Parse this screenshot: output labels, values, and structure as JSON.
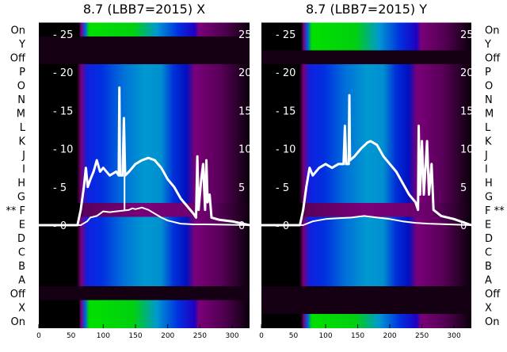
{
  "chart_data": [
    {
      "type": "heatmap",
      "title": "8.7 (LBB7=2015) X",
      "row_labels": [
        "On",
        "Y",
        "Off",
        "P",
        "O",
        "N",
        "M",
        "L",
        "K",
        "J",
        "I",
        "H",
        "G",
        "** F",
        "E",
        "D",
        "C",
        "B",
        "A",
        "Off",
        "X",
        "On"
      ],
      "row_kinds": [
        "on",
        "off",
        "off",
        "c",
        "c",
        "c",
        "c",
        "c",
        "c",
        "c",
        "c",
        "c",
        "c",
        "dim",
        "c",
        "c",
        "c",
        "c",
        "c",
        "off",
        "on",
        "on"
      ],
      "xlim": [
        0,
        327
      ],
      "x_ticks": [
        0,
        50,
        100,
        150,
        200,
        250,
        300
      ],
      "inner_ylim": [
        0,
        25
      ],
      "inner_y_ticks": [
        0,
        5,
        10,
        15,
        20,
        25
      ],
      "series": [
        {
          "name": "upper",
          "points": [
            [
              0,
              0
            ],
            [
              60,
              0
            ],
            [
              65,
              2
            ],
            [
              70,
              5
            ],
            [
              73,
              7.5
            ],
            [
              76,
              5
            ],
            [
              80,
              6
            ],
            [
              85,
              7
            ],
            [
              90,
              8.5
            ],
            [
              95,
              7
            ],
            [
              100,
              7.5
            ],
            [
              110,
              6.5
            ],
            [
              120,
              7
            ],
            [
              124,
              6.5
            ],
            [
              125,
              18
            ],
            [
              126,
              6.5
            ],
            [
              130,
              6.5
            ],
            [
              132,
              14
            ],
            [
              134,
              6.5
            ],
            [
              140,
              7
            ],
            [
              150,
              8
            ],
            [
              160,
              8.5
            ],
            [
              170,
              8.8
            ],
            [
              180,
              8.5
            ],
            [
              190,
              7.5
            ],
            [
              200,
              6
            ],
            [
              210,
              5
            ],
            [
              220,
              3.5
            ],
            [
              230,
              2.5
            ],
            [
              240,
              1.5
            ],
            [
              244,
              1
            ],
            [
              246,
              9
            ],
            [
              248,
              2
            ],
            [
              252,
              6
            ],
            [
              255,
              8
            ],
            [
              258,
              2
            ],
            [
              260,
              8.5
            ],
            [
              262,
              3
            ],
            [
              265,
              4
            ],
            [
              268,
              1
            ],
            [
              280,
              0.7
            ],
            [
              300,
              0.5
            ],
            [
              327,
              0
            ]
          ]
        },
        {
          "name": "lower",
          "points": [
            [
              0,
              0
            ],
            [
              65,
              0
            ],
            [
              75,
              0.5
            ],
            [
              80,
              1
            ],
            [
              90,
              1.2
            ],
            [
              100,
              1.8
            ],
            [
              110,
              1.7
            ],
            [
              120,
              1.8
            ],
            [
              130,
              1.9
            ],
            [
              140,
              2
            ],
            [
              145,
              2.2
            ],
            [
              150,
              2.1
            ],
            [
              160,
              2.3
            ],
            [
              170,
              2
            ],
            [
              180,
              1.5
            ],
            [
              190,
              1
            ],
            [
              200,
              0.6
            ],
            [
              220,
              0.2
            ],
            [
              240,
              0.1
            ],
            [
              260,
              0.1
            ],
            [
              327,
              0
            ]
          ]
        },
        {
          "name": "spike",
          "points": [
            [
              133,
              1.9
            ],
            [
              133,
              6.5
            ]
          ]
        }
      ]
    },
    {
      "type": "heatmap",
      "title": "8.7 (LBB7=2015) Y",
      "row_labels": [
        "On",
        "Y",
        "Off",
        "P",
        "O",
        "N",
        "M",
        "L",
        "K",
        "J",
        "I",
        "H",
        "G",
        "F **",
        "E",
        "D",
        "C",
        "B",
        "A",
        "Off",
        "X",
        "On"
      ],
      "row_kinds": [
        "on",
        "on",
        "off",
        "c",
        "c",
        "c",
        "c",
        "c",
        "c",
        "c",
        "c",
        "c",
        "c",
        "dim",
        "c",
        "c",
        "c",
        "c",
        "c",
        "off",
        "off",
        "on"
      ],
      "xlim": [
        0,
        327
      ],
      "x_ticks": [
        0,
        50,
        100,
        150,
        200,
        250,
        300
      ],
      "inner_ylim": [
        0,
        25
      ],
      "inner_y_ticks": [
        0,
        5,
        10,
        15,
        20,
        25
      ],
      "series": [
        {
          "name": "upper",
          "points": [
            [
              0,
              0
            ],
            [
              60,
              0
            ],
            [
              65,
              2
            ],
            [
              70,
              5
            ],
            [
              75,
              7.5
            ],
            [
              80,
              6.5
            ],
            [
              90,
              7.5
            ],
            [
              100,
              8
            ],
            [
              110,
              7.5
            ],
            [
              120,
              8
            ],
            [
              128,
              8
            ],
            [
              130,
              13
            ],
            [
              132,
              8
            ],
            [
              136,
              8
            ],
            [
              137,
              17
            ],
            [
              138,
              8.5
            ],
            [
              145,
              9
            ],
            [
              155,
              10
            ],
            [
              165,
              10.8
            ],
            [
              170,
              11
            ],
            [
              180,
              10.5
            ],
            [
              190,
              9
            ],
            [
              200,
              8
            ],
            [
              210,
              7
            ],
            [
              220,
              5.5
            ],
            [
              230,
              4
            ],
            [
              240,
              3
            ],
            [
              244,
              2
            ],
            [
              245,
              13
            ],
            [
              247,
              4
            ],
            [
              250,
              11
            ],
            [
              253,
              4
            ],
            [
              258,
              11
            ],
            [
              261,
              4
            ],
            [
              265,
              8
            ],
            [
              268,
              2
            ],
            [
              280,
              1.2
            ],
            [
              300,
              0.8
            ],
            [
              327,
              0
            ]
          ]
        },
        {
          "name": "lower",
          "points": [
            [
              0,
              0
            ],
            [
              65,
              0
            ],
            [
              80,
              0.5
            ],
            [
              100,
              0.8
            ],
            [
              120,
              0.9
            ],
            [
              140,
              1
            ],
            [
              160,
              1.2
            ],
            [
              180,
              1
            ],
            [
              200,
              0.8
            ],
            [
              220,
              0.5
            ],
            [
              240,
              0.3
            ],
            [
              260,
              0.2
            ],
            [
              327,
              0
            ]
          ]
        }
      ]
    }
  ],
  "colors": {
    "green": "#00e000",
    "cyan": "#0098d0",
    "blue": "#0010e0",
    "purple": "#7a007a",
    "dark": "#140012",
    "black": "#000000"
  }
}
